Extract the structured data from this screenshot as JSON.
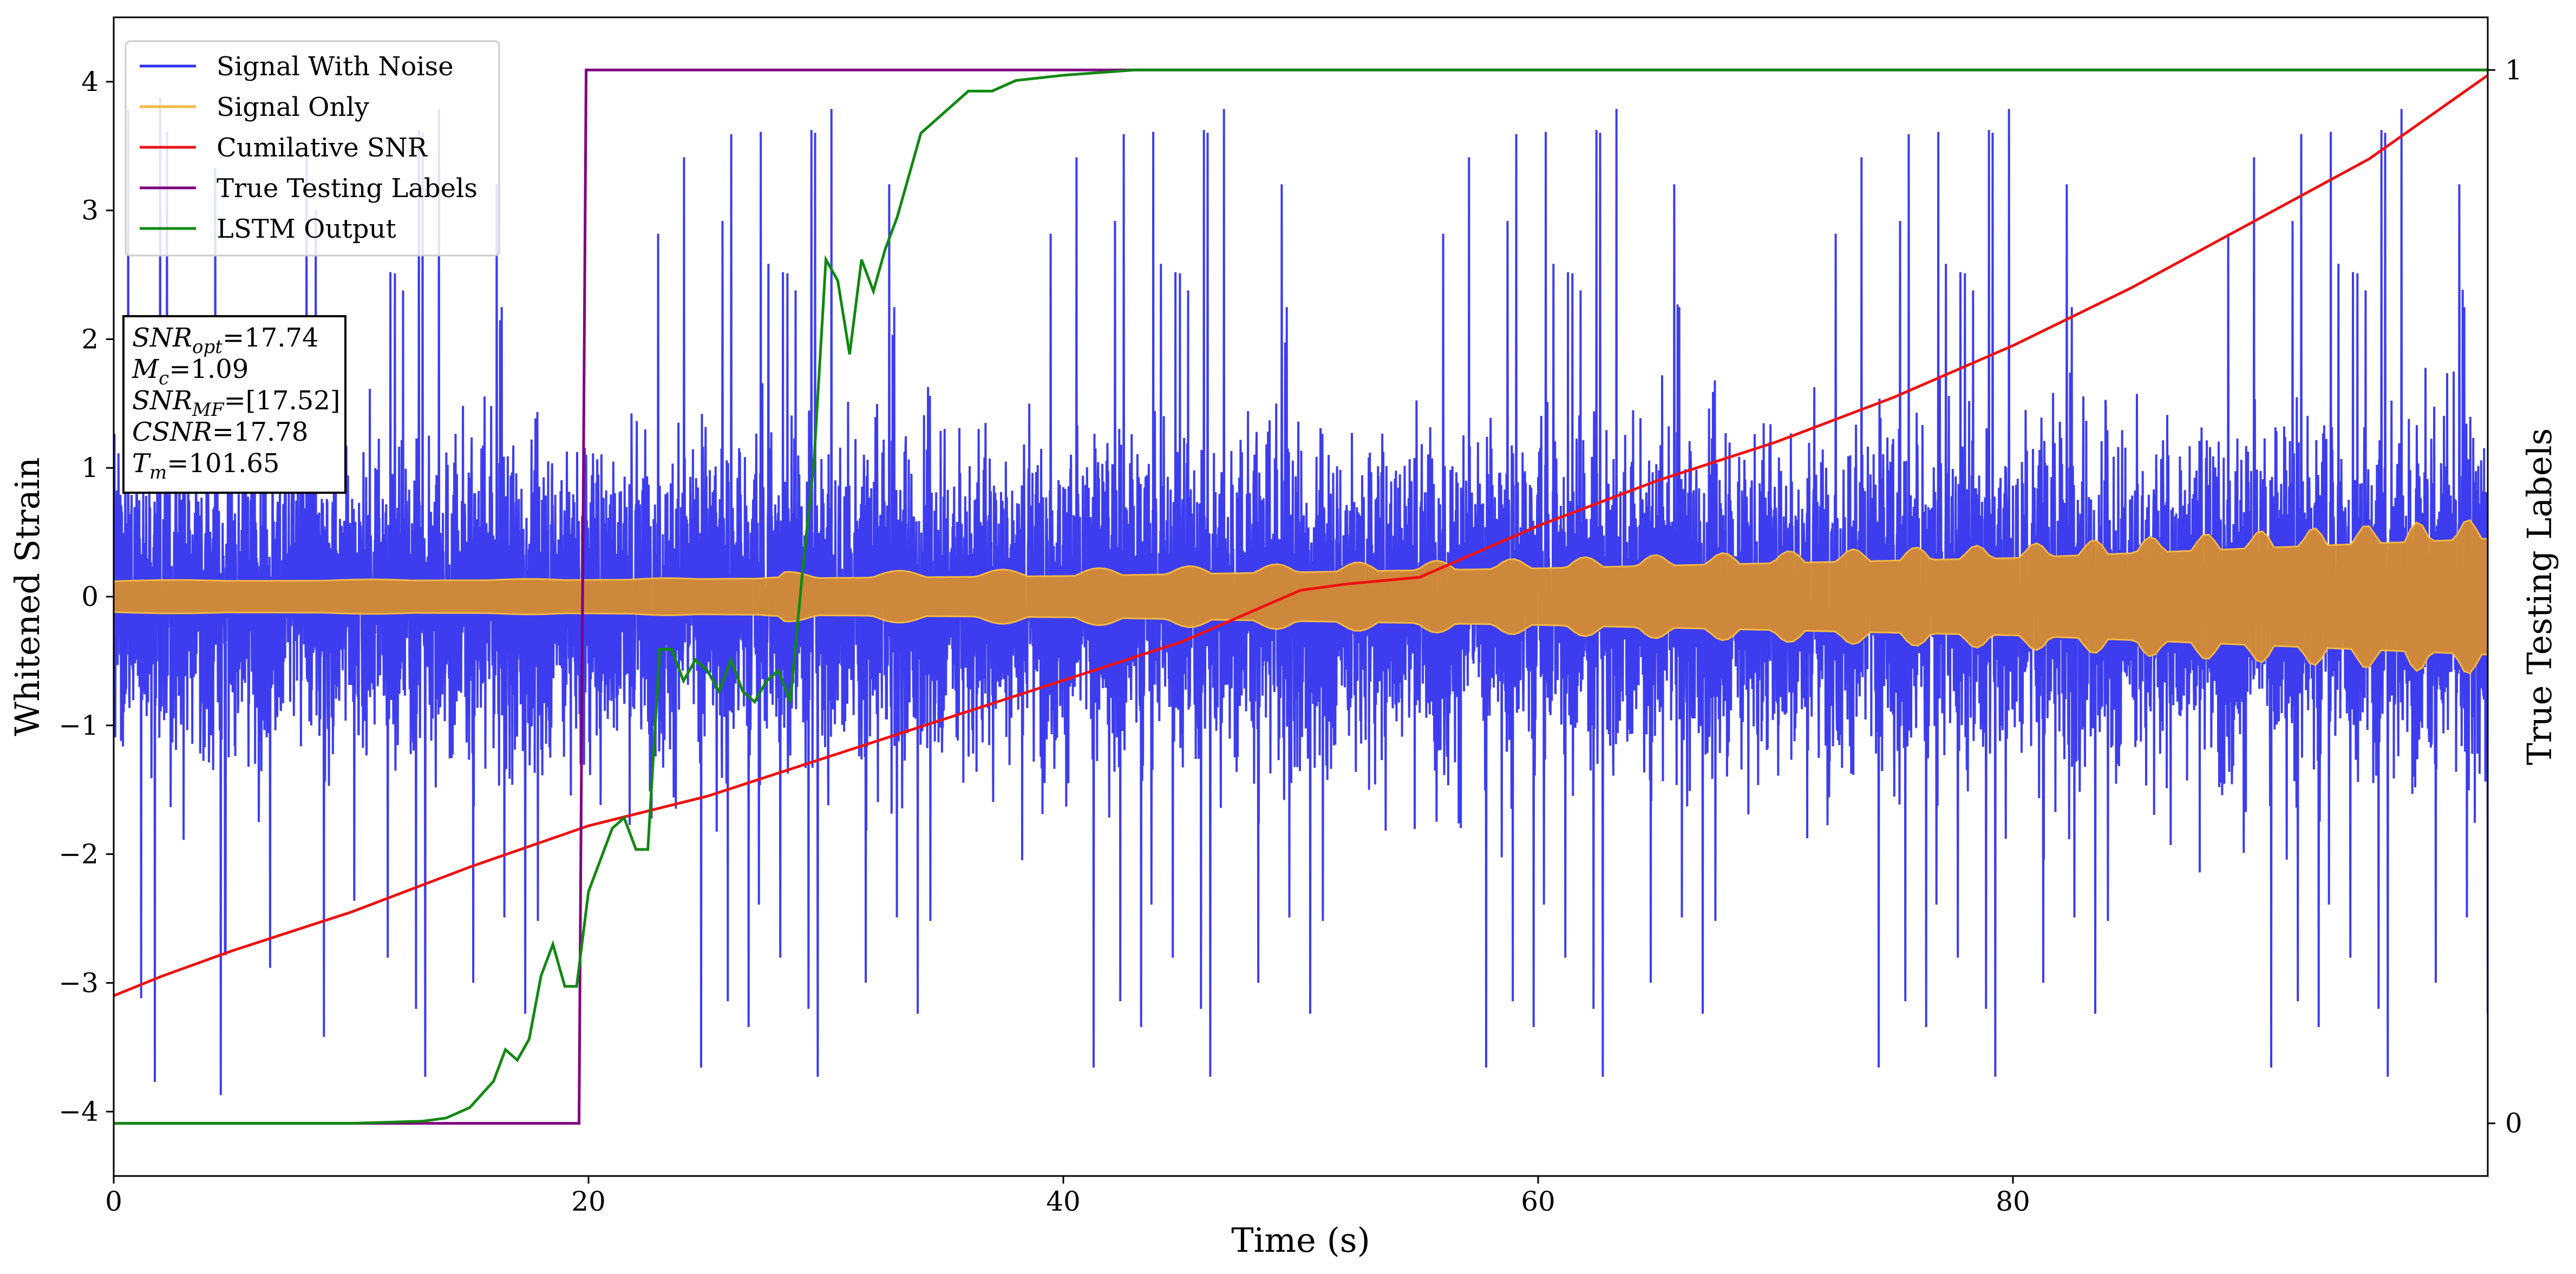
{
  "chart_data": {
    "type": "line",
    "title": "",
    "xlabel": "Time (s)",
    "ylabel": "Whitened Strain",
    "y2label": "True Testing Labels",
    "xlim": [
      0,
      100
    ],
    "ylim": [
      -4.5,
      4.5
    ],
    "y2lim": [
      -0.05,
      1.05
    ],
    "x_ticks": [
      0,
      20,
      40,
      60,
      80
    ],
    "y_ticks": [
      -4,
      -3,
      -2,
      -1,
      0,
      1,
      2,
      3,
      4
    ],
    "y2_ticks": [
      0,
      1
    ],
    "grid": false,
    "legend_position": "upper-left",
    "legend": [
      {
        "label": "Signal With Noise",
        "color": "#3333ee"
      },
      {
        "label": "Signal Only",
        "color": "#f5b942"
      },
      {
        "label": "Cumilative SNR",
        "color": "#ee1111"
      },
      {
        "label": "True Testing Labels",
        "color": "#800080"
      },
      {
        "label": "LSTM Output",
        "color": "#118811"
      }
    ],
    "annotation": {
      "lines": [
        {
          "sym": "SNR",
          "sub": "opt",
          "text": "=17.74"
        },
        {
          "sym": "M",
          "sub": "c",
          "text": "=1.09"
        },
        {
          "sym": "SNR",
          "sub": "MF",
          "text": "=[17.52]"
        },
        {
          "sym": "CSNR",
          "sub": "",
          "text": "=17.78"
        },
        {
          "sym": "T",
          "sub": "m",
          "text": "=101.65"
        }
      ]
    },
    "series": [
      {
        "name": "Signal With Noise",
        "axis": "left",
        "color": "#3333ee",
        "style": "dense noise band",
        "typical_range": [
          -1.8,
          1.8
        ],
        "extreme_range": [
          -4.0,
          4.1
        ]
      },
      {
        "name": "Signal Only",
        "axis": "left",
        "color": "#f5b942",
        "style": "chirp envelope",
        "x": [
          0,
          20,
          40,
          60,
          80,
          100
        ],
        "amplitude": [
          0.12,
          0.13,
          0.16,
          0.22,
          0.3,
          0.45
        ]
      },
      {
        "name": "Cumilative SNR",
        "axis": "left",
        "color": "#ee1111",
        "x": [
          0,
          2,
          5,
          10,
          15,
          20,
          25,
          30,
          35,
          40,
          45,
          50,
          52,
          55,
          60,
          65,
          70,
          75,
          80,
          85,
          90,
          95,
          100
        ],
        "y": [
          -3.1,
          -2.95,
          -2.75,
          -2.45,
          -2.1,
          -1.78,
          -1.55,
          -1.25,
          -0.95,
          -0.65,
          -0.35,
          0.05,
          0.1,
          0.15,
          0.55,
          0.9,
          1.2,
          1.55,
          1.95,
          2.4,
          2.9,
          3.4,
          4.05
        ]
      },
      {
        "name": "True Testing Labels",
        "axis": "right",
        "color": "#800080",
        "x": [
          0,
          19.6,
          19.9,
          100
        ],
        "y": [
          0,
          0,
          1,
          1
        ]
      },
      {
        "name": "LSTM Output",
        "axis": "right",
        "color": "#118811",
        "x": [
          0,
          10,
          13,
          14,
          15,
          16,
          16.5,
          17,
          17.5,
          18,
          18.5,
          19,
          19.5,
          20,
          20.5,
          21,
          21.5,
          22,
          22.5,
          23,
          23.5,
          24,
          24.5,
          25,
          25.5,
          26,
          26.5,
          27,
          27.5,
          28,
          28.5,
          29,
          29.5,
          30,
          30.5,
          31,
          31.5,
          32,
          32.5,
          33,
          33.5,
          34,
          35,
          36,
          37,
          38,
          40,
          43,
          46,
          50,
          100
        ],
        "y": [
          0,
          0,
          0.002,
          0.005,
          0.015,
          0.04,
          0.07,
          0.06,
          0.08,
          0.14,
          0.17,
          0.13,
          0.13,
          0.22,
          0.25,
          0.28,
          0.29,
          0.26,
          0.26,
          0.45,
          0.45,
          0.42,
          0.44,
          0.43,
          0.41,
          0.44,
          0.41,
          0.4,
          0.42,
          0.43,
          0.4,
          0.52,
          0.63,
          0.82,
          0.8,
          0.73,
          0.82,
          0.79,
          0.83,
          0.86,
          0.9,
          0.94,
          0.96,
          0.98,
          0.98,
          0.99,
          0.995,
          1,
          1,
          1,
          1
        ]
      }
    ]
  }
}
